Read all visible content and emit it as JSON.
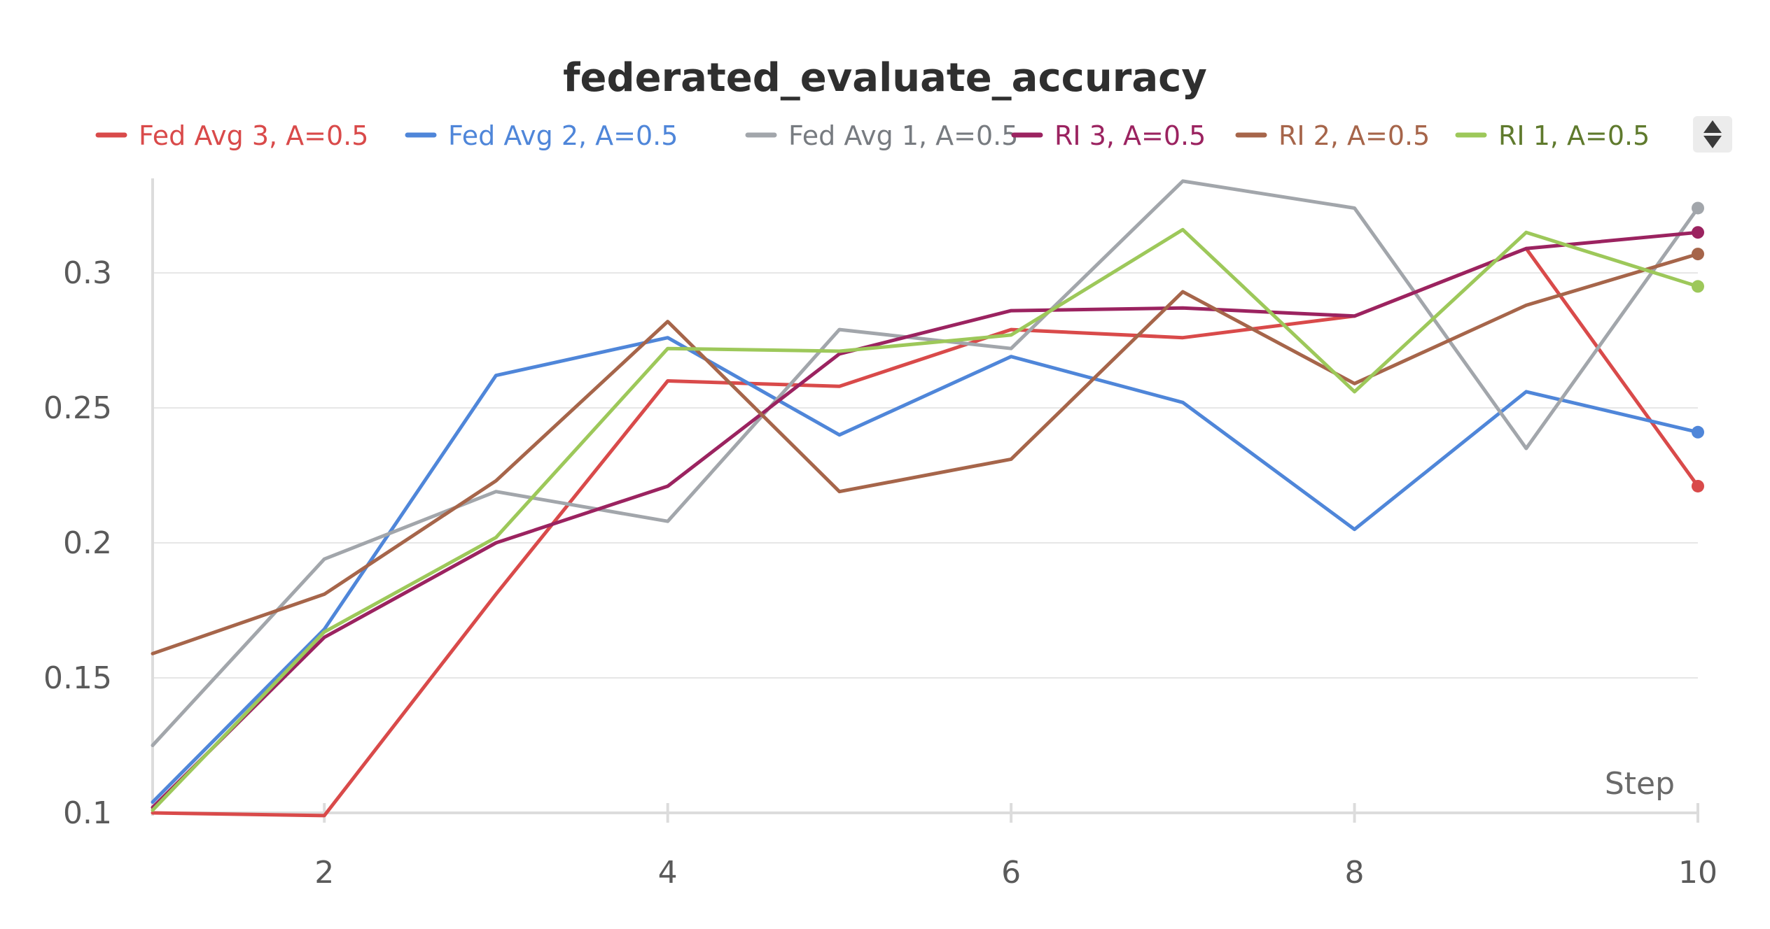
{
  "chart_data": {
    "type": "line",
    "title": "federated_evaluate_accuracy",
    "xlabel": "Step",
    "ylabel": "",
    "x": [
      1,
      2,
      3,
      4,
      5,
      6,
      7,
      8,
      9,
      10
    ],
    "xlim": [
      1,
      10
    ],
    "ylim": [
      0.1,
      0.335
    ],
    "xticks": [
      "2",
      "4",
      "6",
      "8",
      "10"
    ],
    "yticks": [
      "0.1",
      "0.15",
      "0.2",
      "0.25",
      "0.3"
    ],
    "grid": true,
    "legend_position": "top",
    "series": [
      {
        "name": "Fed Avg 3, A=0.5",
        "color": "#d94a4a",
        "values": [
          0.1,
          0.099,
          0.181,
          0.26,
          0.258,
          0.279,
          0.276,
          0.284,
          0.309,
          0.221
        ]
      },
      {
        "name": "Fed Avg 2, A=0.5",
        "color": "#4f86d9",
        "values": [
          0.104,
          0.168,
          0.262,
          0.276,
          0.24,
          0.269,
          0.252,
          0.205,
          0.256,
          0.241
        ]
      },
      {
        "name": "Fed Avg 1, A=0.5",
        "color": "#a2a6ab",
        "values": [
          0.125,
          0.194,
          0.219,
          0.208,
          0.279,
          0.272,
          0.334,
          0.324,
          0.235,
          0.324
        ]
      },
      {
        "name": "RI 3, A=0.5",
        "color": "#9b2360",
        "values": [
          0.102,
          0.165,
          0.2,
          0.221,
          0.27,
          0.286,
          0.287,
          0.284,
          0.309,
          0.315
        ]
      },
      {
        "name": "RI 2, A=0.5",
        "color": "#a6654a",
        "values": [
          0.159,
          0.181,
          0.223,
          0.282,
          0.219,
          0.231,
          0.293,
          0.259,
          0.288,
          0.307
        ]
      },
      {
        "name": "RI 1, A=0.5",
        "color": "#9dc85a",
        "values": [
          0.101,
          0.167,
          0.202,
          0.272,
          0.271,
          0.277,
          0.316,
          0.256,
          0.315,
          0.295
        ]
      }
    ]
  },
  "legend": {
    "text_colors": [
      "#d94a4a",
      "#4f86d9",
      "#777b80",
      "#9b2360",
      "#a6654a",
      "#5f7a2d"
    ],
    "scroll_icon": "up-down-arrows-icon"
  }
}
